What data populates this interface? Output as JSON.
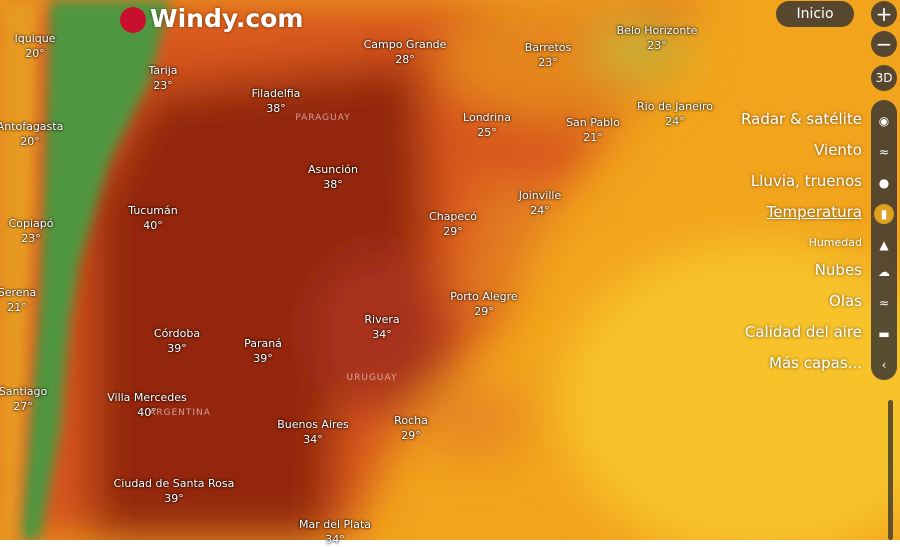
{
  "logo": "Windy.com",
  "buttons": {
    "login": "Inicio",
    "zoom_in": "+",
    "zoom_out": "−",
    "view_3d": "3D"
  },
  "countries": [
    "PARAGUAY",
    "URUGUAY",
    "ARGENTINA"
  ],
  "cities": [
    {
      "name": "Iquique",
      "temp": "20°"
    },
    {
      "name": "Tarija",
      "temp": "23°"
    },
    {
      "name": "Antofagasta",
      "temp": "20°"
    },
    {
      "name": "Filadelfia",
      "temp": "38°"
    },
    {
      "name": "Campo Grande",
      "temp": "28°"
    },
    {
      "name": "Barretos",
      "temp": "23°"
    },
    {
      "name": "Belo Horizonte",
      "temp": "23°"
    },
    {
      "name": "Rio de Janeiro",
      "temp": "24°"
    },
    {
      "name": "San Pablo",
      "temp": "21°"
    },
    {
      "name": "Londrina",
      "temp": "25°"
    },
    {
      "name": "Asunción",
      "temp": "38°"
    },
    {
      "name": "Tucumán",
      "temp": "40°"
    },
    {
      "name": "Copiapó",
      "temp": "23°"
    },
    {
      "name": "Chapecó",
      "temp": "29°"
    },
    {
      "name": "Joinville",
      "temp": "24°"
    },
    {
      "name": "Serena",
      "temp": "21°"
    },
    {
      "name": "Porto Alegre",
      "temp": "29°"
    },
    {
      "name": "Rivera",
      "temp": "34°"
    },
    {
      "name": "Córdoba",
      "temp": "39°"
    },
    {
      "name": "Paraná",
      "temp": "39°"
    },
    {
      "name": "Santiago",
      "temp": "27°"
    },
    {
      "name": "Villa Mercedes",
      "temp": "40°"
    },
    {
      "name": "Buenos Aires",
      "temp": "34°"
    },
    {
      "name": "Rocha",
      "temp": "29°"
    },
    {
      "name": "Ciudad de Santa Rosa",
      "temp": "39°"
    },
    {
      "name": "Mar del Plata",
      "temp": "34°"
    }
  ],
  "layers": [
    "Radar & satélite",
    "Viento",
    "Lluvia, truenos",
    "Temperatura",
    "Humedad",
    "Nubes",
    "Olas",
    "Calidad del aire",
    "Más capas..."
  ]
}
